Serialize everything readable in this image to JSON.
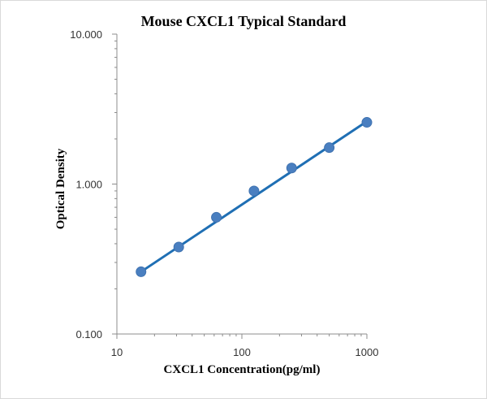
{
  "chart_data": {
    "type": "scatter",
    "title": "Mouse CXCL1 Typical Standard",
    "xlabel": "CXCL1 Concentration(pg/ml)",
    "ylabel": "Optical Density",
    "x_scale": "log",
    "y_scale": "log",
    "xlim": [
      10,
      1000
    ],
    "ylim": [
      0.1,
      10
    ],
    "x_ticks": [
      10,
      100,
      1000
    ],
    "x_tick_labels": [
      "10",
      "100",
      "1000"
    ],
    "y_ticks": [
      0.1,
      1,
      10
    ],
    "y_tick_labels": [
      "0.100",
      "1.000",
      "10.000"
    ],
    "grid": false,
    "legend": "none",
    "series": [
      {
        "x": [
          15.6,
          31.25,
          62.5,
          125,
          250,
          500,
          1000
        ],
        "y": [
          0.26,
          0.38,
          0.6,
          0.9,
          1.28,
          1.75,
          2.58
        ]
      }
    ],
    "trendline": {
      "x": [
        15.6,
        1000
      ],
      "y": [
        0.26,
        2.62
      ]
    },
    "colors": {
      "points": "#4a7fc0",
      "line": "#1f6fb4",
      "axis": "#8c8c8c"
    }
  }
}
